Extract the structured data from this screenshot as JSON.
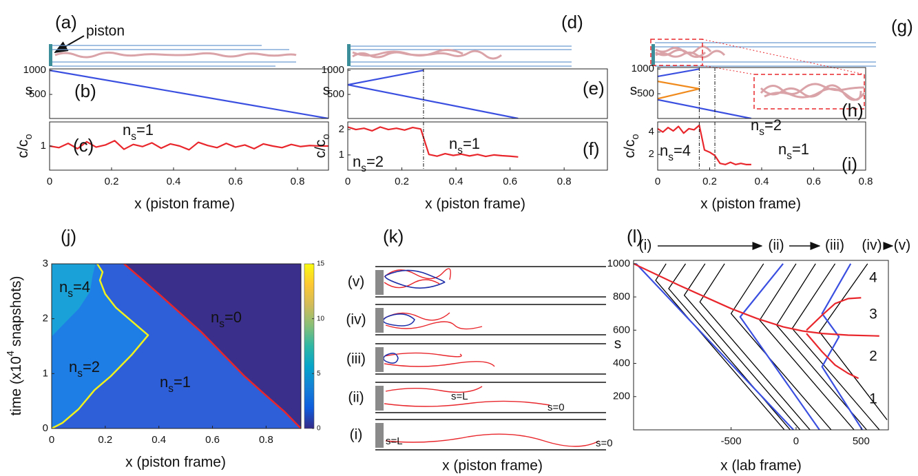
{
  "figure": {
    "schematics": {
      "a": "(a)",
      "d": "(d)",
      "g": "(g)",
      "k": "(k)",
      "piston": "piston"
    },
    "k_panel": {
      "rows": [
        "(v)",
        "(iv)",
        "(iii)",
        "(ii)",
        "(i)"
      ],
      "s_L": "s=L",
      "s_0": "s=0",
      "xlabel": "x (piston frame)"
    }
  },
  "chart_data": [
    {
      "type": "line",
      "label": "(b)",
      "ylabel": "s",
      "xlim": [
        0,
        0.9
      ],
      "ylim": [
        0,
        1030
      ],
      "yticks": [
        500,
        1000
      ],
      "series": [
        {
          "color": "#3a4fe0",
          "x": [
            0,
            0.9
          ],
          "values": [
            1000,
            0
          ]
        }
      ]
    },
    {
      "type": "line",
      "label": "(c)",
      "ylabel": {
        "base": "c/c",
        "sub": "o"
      },
      "xlabel": "x (piston frame)",
      "xlim": [
        0,
        0.9
      ],
      "ylim": [
        0.55,
        1.45
      ],
      "xticks": [
        0,
        0.2,
        0.4,
        0.6,
        0.8
      ],
      "yticks": [
        1
      ],
      "series": [
        {
          "color": "#e8262b",
          "x": [
            0,
            0.03,
            0.06,
            0.09,
            0.12,
            0.15,
            0.18,
            0.21,
            0.24,
            0.27,
            0.3,
            0.33,
            0.36,
            0.39,
            0.42,
            0.45,
            0.48,
            0.51,
            0.54,
            0.57,
            0.6,
            0.63,
            0.66,
            0.69,
            0.72,
            0.75,
            0.78,
            0.81,
            0.84,
            0.87,
            0.9
          ],
          "values": [
            1,
            0.97,
            1.05,
            0.95,
            1.08,
            0.98,
            1.02,
            1.1,
            0.94,
            1.03,
            0.99,
            1.06,
            0.96,
            1.04,
            1,
            0.93,
            1.07,
            1.01,
            0.97,
            1.05,
            0.98,
            1.02,
            0.95,
            1.04,
            1,
            0.97,
            1.03,
            0.99,
            1.01,
            1,
            1
          ]
        }
      ],
      "annotations": [
        {
          "base": "n",
          "sub": "s",
          "text": "=1"
        }
      ],
      "annotation_color": "#e8262b"
    },
    {
      "type": "line",
      "label": "(e)",
      "ylabel": "s",
      "xlim": [
        0,
        0.96
      ],
      "ylim": [
        0,
        1030
      ],
      "yticks": [
        500,
        1000
      ],
      "vlines": [
        0.28
      ],
      "series": [
        {
          "color": "#3a4fe0",
          "x": [
            0.28,
            0,
            0.63
          ],
          "values": [
            1000,
            700,
            0
          ]
        }
      ]
    },
    {
      "type": "line",
      "label": "(f)",
      "ylabel": {
        "base": "c/c",
        "sub": "o"
      },
      "xlabel": "x (piston frame)",
      "xlim": [
        0,
        0.96
      ],
      "ylim": [
        0.4,
        2.3
      ],
      "xticks": [
        0,
        0.2,
        0.4,
        0.6,
        0.8
      ],
      "yticks": [
        1,
        2
      ],
      "vlines": [
        0.28
      ],
      "series": [
        {
          "color": "#e8262b",
          "x": [
            0,
            0.03,
            0.06,
            0.09,
            0.12,
            0.15,
            0.18,
            0.21,
            0.24,
            0.27,
            0.3,
            0.33,
            0.36,
            0.39,
            0.42,
            0.45,
            0.48,
            0.51,
            0.54,
            0.57,
            0.6,
            0.63
          ],
          "values": [
            2.1,
            2,
            2.05,
            1.95,
            2.1,
            2,
            2.05,
            1.98,
            2.08,
            2.02,
            1.02,
            0.95,
            1.05,
            0.98,
            1.03,
            0.96,
            1.02,
            0.94,
            1,
            0.97,
            0.95,
            0.92
          ]
        }
      ],
      "annotations": [
        {
          "base": "n",
          "sub": "s",
          "text": "=2"
        },
        {
          "base": "n",
          "sub": "s",
          "text": "=1"
        }
      ],
      "annotation_color": "#e8262b"
    },
    {
      "type": "line",
      "label": "(h)",
      "ylabel": "s",
      "xlim": [
        0,
        0.8
      ],
      "ylim": [
        0,
        1030
      ],
      "yticks": [
        500,
        1000
      ],
      "vlines": [
        0.16,
        0.22
      ],
      "series": [
        {
          "color": "#3a4fe0",
          "x": [
            0,
            0.16
          ],
          "values": [
            850,
            1000
          ]
        },
        {
          "color": "#3a4fe0",
          "x": [
            0,
            0.36
          ],
          "values": [
            380,
            0
          ]
        },
        {
          "color": "#f08a1c",
          "x": [
            0,
            0.16,
            0
          ],
          "values": [
            750,
            600,
            400
          ]
        }
      ]
    },
    {
      "type": "line",
      "label": "(i)",
      "ylabel": {
        "base": "c/c",
        "sub": "o"
      },
      "xlabel": "x (piston frame)",
      "xlim": [
        0,
        0.8
      ],
      "ylim": [
        0.6,
        4.9
      ],
      "xticks": [
        0,
        0.2,
        0.4,
        0.6,
        0.8
      ],
      "yticks": [
        2,
        4
      ],
      "vlines": [
        0.16,
        0.22
      ],
      "series": [
        {
          "color": "#e8262b",
          "x": [
            0,
            0.02,
            0.04,
            0.06,
            0.08,
            0.1,
            0.12,
            0.14,
            0.16,
            0.18,
            0.2,
            0.22,
            0.24,
            0.26,
            0.28,
            0.3,
            0.32,
            0.34,
            0.36
          ],
          "values": [
            4.3,
            4,
            4.4,
            4.1,
            4.5,
            3.9,
            4.3,
            4.2,
            4.6,
            2.4,
            2.2,
            1.9,
            1.2,
            1.1,
            1.3,
            1.1,
            1.2,
            1.1,
            1.1
          ]
        }
      ],
      "annotations": [
        {
          "base": "n",
          "sub": "s",
          "text": "=4"
        },
        {
          "base": "n",
          "sub": "s",
          "text": "=2"
        },
        {
          "base": "n",
          "sub": "s",
          "text": "=1"
        }
      ],
      "annotation_color": "#e8262b"
    },
    {
      "type": "phase",
      "label": "(j)",
      "ylabel": {
        "base": "time (x10",
        "sup": "4",
        "text": " snapshots)"
      },
      "xlabel": "x (piston frame)",
      "xlim": [
        0,
        0.93
      ],
      "ylim": [
        0,
        3
      ],
      "xticks": [
        0,
        0.2,
        0.4,
        0.6,
        0.8
      ],
      "yticks": [
        0,
        1,
        2,
        3
      ],
      "background": "#3a2f8a",
      "series": [
        {
          "color": "#e8262b",
          "fill": "#2e5ed8",
          "x": [
            0.27,
            0.33,
            0.4,
            0.48,
            0.56,
            0.64,
            0.72,
            0.8,
            0.87,
            0.93
          ],
          "values": [
            3,
            2.75,
            2.45,
            2.1,
            1.75,
            1.35,
            0.95,
            0.6,
            0.3,
            0
          ]
        },
        {
          "color": "#f2f21a",
          "fill": "#1f7ee6",
          "x": [
            0,
            0.04,
            0.1,
            0.16,
            0.22,
            0.3,
            0.36,
            0.3,
            0.24,
            0.2,
            0.18,
            0.19,
            0.17
          ],
          "values": [
            0,
            0.1,
            0.35,
            0.7,
            0.95,
            1.35,
            1.7,
            1.95,
            2.2,
            2.45,
            2.7,
            2.85,
            3
          ]
        },
        {
          "color": "#1aa2d8",
          "fill": "#1aa2d8",
          "x": [
            0,
            0.05,
            0.1,
            0.14,
            0.15,
            0.16
          ],
          "values": [
            1.7,
            1.95,
            2.2,
            2.5,
            2.8,
            3
          ]
        }
      ],
      "annotations": [
        {
          "base": "n",
          "sub": "s",
          "text": "=4"
        },
        {
          "base": "n",
          "sub": "s",
          "text": "=2"
        },
        {
          "base": "n",
          "sub": "s",
          "text": "=1"
        },
        {
          "base": "n",
          "sub": "s",
          "text": "=0"
        }
      ],
      "annotation_color": "#ffffff",
      "colorbar": {
        "lim": [
          0,
          15
        ],
        "ticks": [
          0,
          5,
          10,
          15
        ],
        "colors": [
          "#352a87",
          "#0f5cdd",
          "#1481d6",
          "#06a4ca",
          "#2eb7a4",
          "#87bf77",
          "#d1bb59",
          "#fec832",
          "#f9fb0e"
        ]
      }
    },
    {
      "type": "line",
      "label": "(l)",
      "ylabel": "s",
      "xlabel": "x (lab frame)",
      "xlim": [
        -1250,
        710
      ],
      "ylim": [
        0,
        1020
      ],
      "xticks": [
        -500,
        0,
        500
      ],
      "yticks": [
        200,
        400,
        600,
        800,
        1000
      ],
      "series": [
        {
          "color": "#000000",
          "x": [
            -1000,
            -1080,
            -90
          ],
          "values": [
            1000,
            900,
            0
          ]
        },
        {
          "color": "#000000",
          "x": [
            -850,
            -980,
            -45
          ],
          "values": [
            1000,
            850,
            0
          ]
        },
        {
          "color": "#000000",
          "x": [
            -700,
            -860,
            31
          ],
          "values": [
            1000,
            810,
            0
          ]
        },
        {
          "color": "#000000",
          "x": [
            -550,
            -740,
            107
          ],
          "values": [
            1000,
            770,
            0
          ]
        },
        {
          "color": "#000000",
          "x": [
            -250,
            -500,
            270
          ],
          "values": [
            1000,
            700,
            0
          ]
        },
        {
          "color": "#000000",
          "x": [
            0,
            -280,
            446
          ],
          "values": [
            1000,
            660,
            0
          ]
        },
        {
          "color": "#000000",
          "x": [
            150,
            -150,
            543
          ],
          "values": [
            1000,
            630,
            0
          ]
        },
        {
          "color": "#000000",
          "x": [
            300,
            -30,
            641
          ],
          "values": [
            1000,
            610,
            0
          ]
        },
        {
          "color": "#000000",
          "x": [
            550,
            180,
            700
          ],
          "values": [
            1000,
            590,
            60
          ]
        },
        {
          "color": "#3a4fe0",
          "x": [
            -1230,
            -20
          ],
          "values": [
            1000,
            0
          ]
        },
        {
          "color": "#3a4fe0",
          "x": [
            -100,
            -430,
            180
          ],
          "values": [
            1000,
            680,
            0
          ]
        },
        {
          "color": "#3a4fe0",
          "x": [
            420,
            200,
            330,
            200,
            510
          ],
          "values": [
            1000,
            700,
            560,
            380,
            0
          ]
        },
        {
          "color": "#e8262b",
          "x": [
            -1250,
            -900,
            -700,
            -500,
            -300,
            -100,
            50,
            200,
            400,
            640
          ],
          "values": [
            1000,
            870,
            800,
            730,
            670,
            620,
            595,
            580,
            570,
            565
          ]
        },
        {
          "color": "#e8262b",
          "x": [
            80,
            200,
            300,
            400,
            500
          ],
          "values": [
            600,
            690,
            760,
            790,
            795
          ]
        },
        {
          "color": "#e8262b",
          "x": [
            80,
            200,
            300,
            400,
            480
          ],
          "values": [
            580,
            470,
            390,
            340,
            310
          ]
        }
      ],
      "stages": [
        "(i)",
        "(ii)",
        "(iii)",
        "(iv)",
        "(v)"
      ],
      "region_labels": [
        "1",
        "2",
        "3",
        "4"
      ],
      "region_label_color": "#f08a1c"
    }
  ]
}
